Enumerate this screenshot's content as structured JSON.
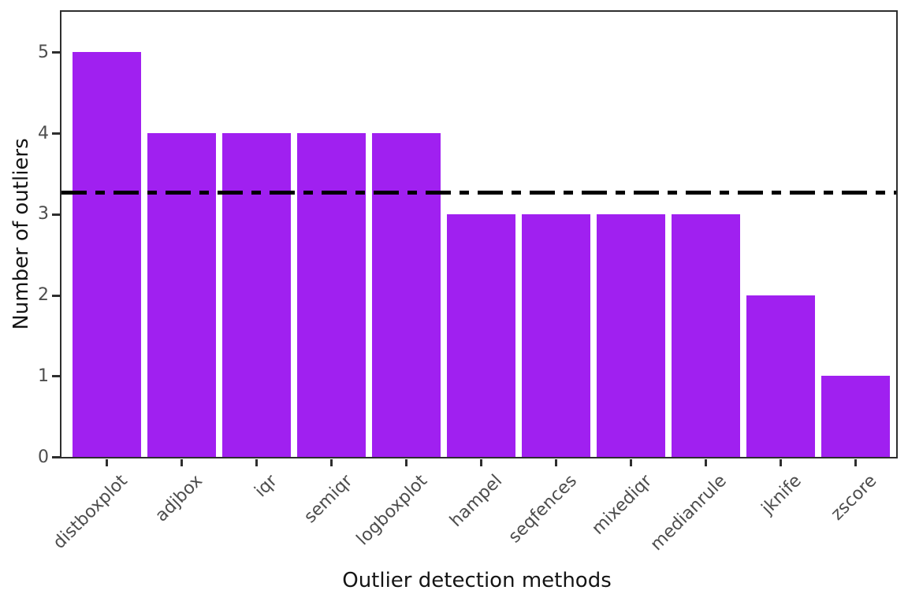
{
  "figure": {
    "background": "#ffffff",
    "spine_color": "#2e2e2e",
    "tick_label_color": "#4d4d4d",
    "axis_label_color": "#141414"
  },
  "chart_data": {
    "type": "bar",
    "title": "",
    "xlabel": "Outlier detection methods",
    "ylabel": "Number of outliers",
    "categories": [
      "distboxplot",
      "adjbox",
      "iqr",
      "semiqr",
      "logboxplot",
      "hampel",
      "seqfences",
      "mixediqr",
      "medianrule",
      "jknife",
      "zscore"
    ],
    "values": [
      5,
      4,
      4,
      4,
      4,
      3,
      3,
      3,
      3,
      2,
      1
    ],
    "bar_color": "#a020f0",
    "ylim": [
      0,
      5.5
    ],
    "yticks": [
      "0",
      "1",
      "2",
      "3",
      "4",
      "5"
    ],
    "grid": false,
    "legend": null,
    "reference_line": {
      "value": 3.27,
      "style": "dashdot",
      "color": "#000000"
    }
  }
}
